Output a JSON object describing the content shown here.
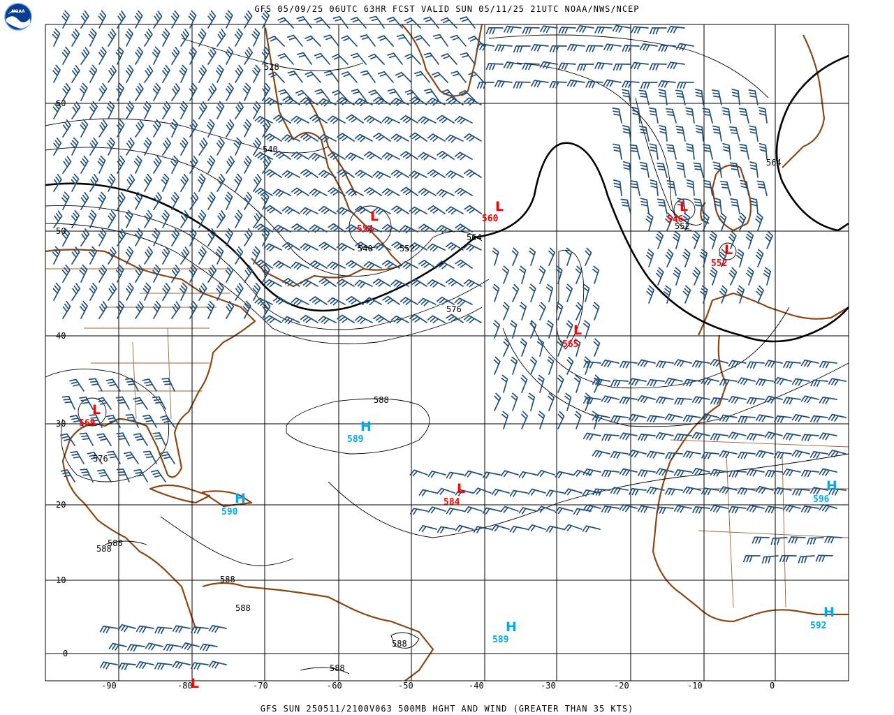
{
  "header": {
    "title": "GFS 05/09/25 06UTC 63HR FCST VALID SUN 05/11/25 21UTC NOAA/NWS/NCEP",
    "logo_text": "NOAA"
  },
  "footer": {
    "text": "GFS SUN 250511/2100V063 500MB HGHT AND WIND (GREATER THAN 35 KTS)"
  },
  "colors": {
    "coast": "#8b4513",
    "grid": "#000000",
    "barb": "#1f4e79",
    "low": "#ff0000",
    "high": "#00aaee",
    "contour": "#000000"
  },
  "axes": {
    "lat_labels": [
      "60",
      "50",
      "40",
      "30",
      "20",
      "10",
      "0"
    ],
    "lon_labels": [
      "-90",
      "-80",
      "-70",
      "-60",
      "-50",
      "-40",
      "-30",
      "-20",
      "-10",
      "0"
    ]
  },
  "contour_labels": [
    "528",
    "540",
    "540",
    "552",
    "564",
    "564",
    "552",
    "576",
    "588",
    "576",
    "588",
    "588",
    "588",
    "588",
    "588",
    "588"
  ],
  "systems": [
    {
      "type": "L",
      "value": "554"
    },
    {
      "type": "L",
      "value": "560"
    },
    {
      "type": "L",
      "value": "546"
    },
    {
      "type": "L",
      "value": "552"
    },
    {
      "type": "L",
      "value": "565"
    },
    {
      "type": "L",
      "value": "569"
    },
    {
      "type": "L",
      "value": "584"
    },
    {
      "type": "L",
      "value": ""
    },
    {
      "type": "H",
      "value": "589"
    },
    {
      "type": "H",
      "value": "590"
    },
    {
      "type": "H",
      "value": "596"
    },
    {
      "type": "H",
      "value": "592"
    },
    {
      "type": "H",
      "value": "589"
    }
  ]
}
